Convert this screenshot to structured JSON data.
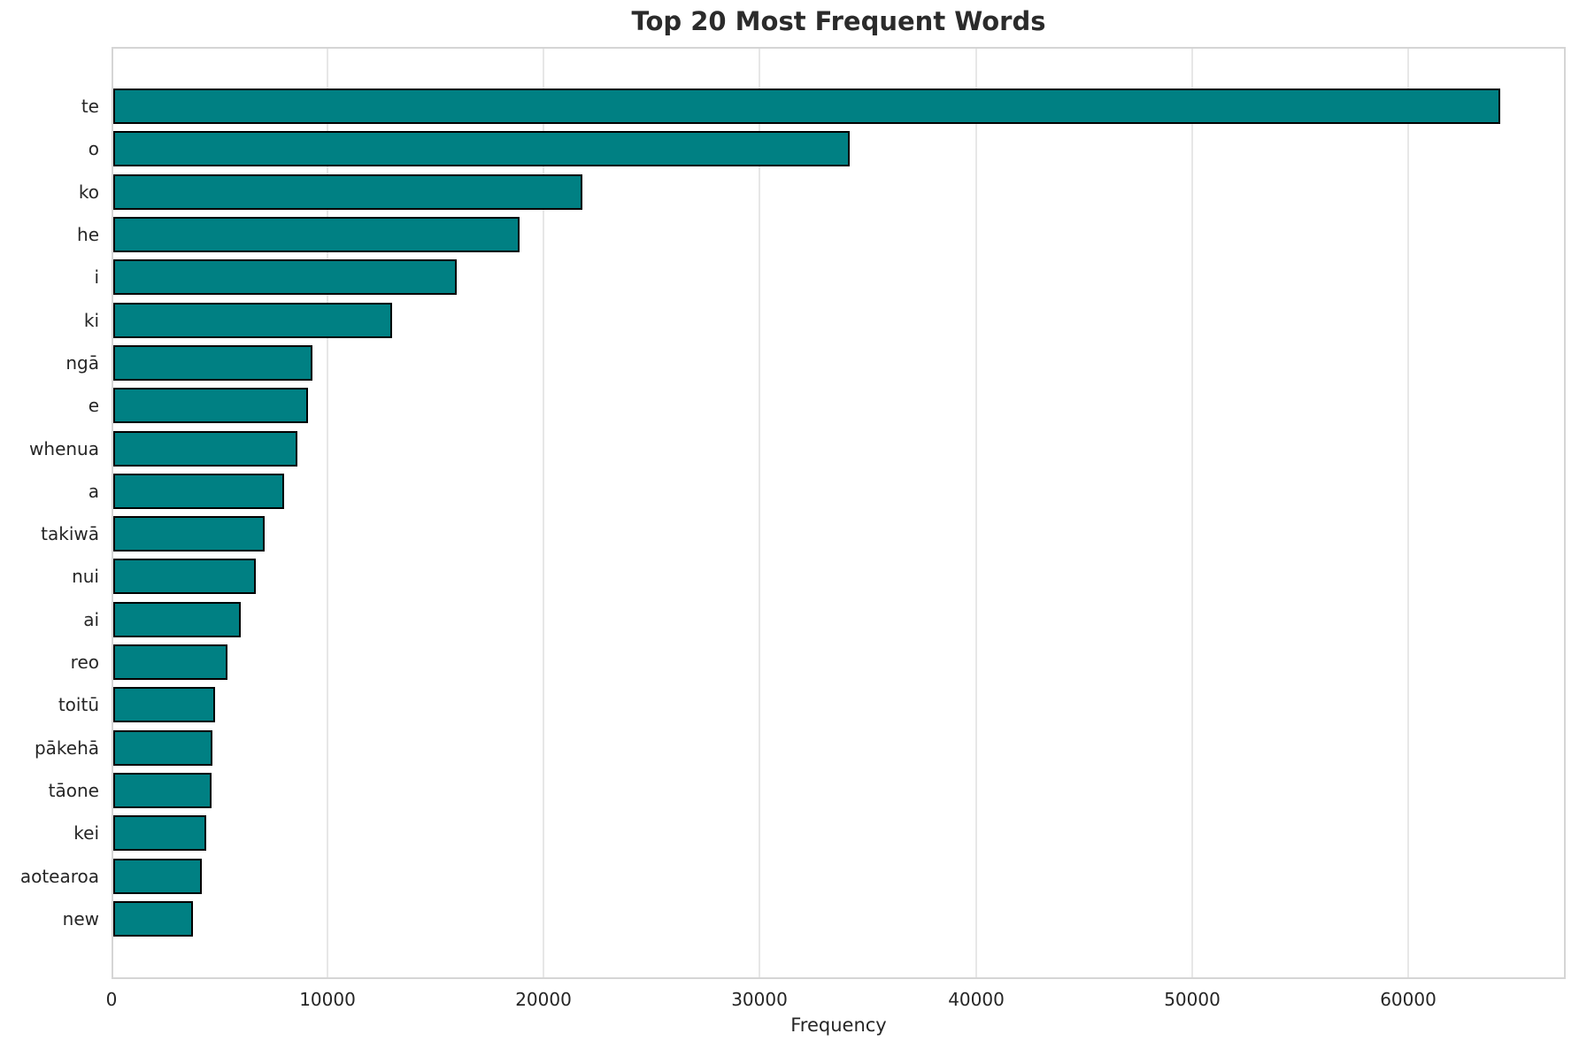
{
  "chart_data": {
    "type": "bar",
    "orientation": "horizontal",
    "title": "Top 20 Most Frequent Words",
    "xlabel": "Frequency",
    "ylabel": "",
    "categories": [
      "te",
      "o",
      "ko",
      "he",
      "i",
      "ki",
      "ngā",
      "e",
      "whenua",
      "a",
      "takiwā",
      "nui",
      "ai",
      "reo",
      "toitū",
      "pākehā",
      "tāone",
      "kei",
      "aotearoa",
      "new"
    ],
    "values": [
      64200,
      34100,
      21700,
      18800,
      15900,
      12900,
      9200,
      9000,
      8500,
      7900,
      7000,
      6600,
      5900,
      5300,
      4700,
      4600,
      4550,
      4300,
      4100,
      3700
    ],
    "xlim": [
      0,
      67300
    ],
    "xticks": [
      0,
      10000,
      20000,
      30000,
      40000,
      50000,
      60000
    ],
    "xtick_labels": [
      "0",
      "10000",
      "20000",
      "30000",
      "40000",
      "50000",
      "60000"
    ],
    "grid": true,
    "legend": false,
    "bar_color": "#008083",
    "bar_edge_color": "#000000",
    "grid_color": "#e7e7e7"
  }
}
